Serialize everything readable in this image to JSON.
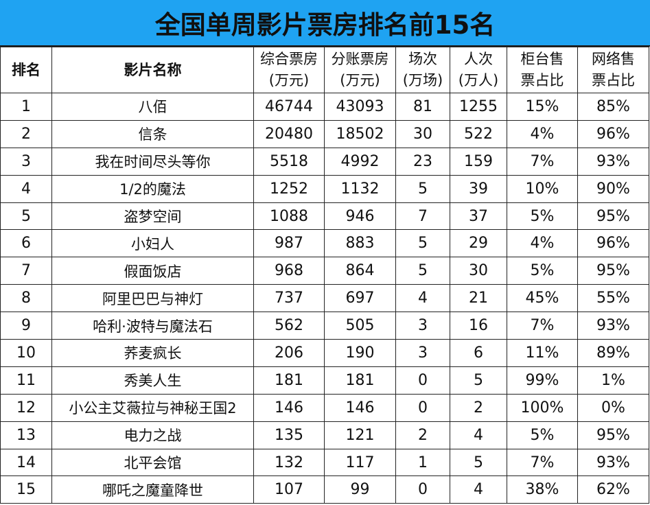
{
  "title": "全国单周影片票房排名前15名",
  "headers": [
    {
      "line1": "排名",
      "line2": ""
    },
    {
      "line1": "影片名称",
      "line2": ""
    },
    {
      "line1": "综合票房",
      "line2": "(万元)"
    },
    {
      "line1": "分账票房",
      "line2": "(万元)"
    },
    {
      "line1": "场次",
      "line2": "(万场)"
    },
    {
      "line1": "人次",
      "line2": "(万人)"
    },
    {
      "line1": "柜台售",
      "line2": "票占比"
    },
    {
      "line1": "网络售",
      "line2": "票占比"
    }
  ],
  "rows": [
    {
      "rank": "1",
      "name": "八佰",
      "total": "46744",
      "split": "43093",
      "shows": "81",
      "attendance": "1255",
      "counter": "15%",
      "online": "85%"
    },
    {
      "rank": "2",
      "name": "信条",
      "total": "20480",
      "split": "18502",
      "shows": "30",
      "attendance": "522",
      "counter": "4%",
      "online": "96%"
    },
    {
      "rank": "3",
      "name": "我在时间尽头等你",
      "total": "5518",
      "split": "4992",
      "shows": "23",
      "attendance": "159",
      "counter": "7%",
      "online": "93%"
    },
    {
      "rank": "4",
      "name": "1/2的魔法",
      "total": "1252",
      "split": "1132",
      "shows": "5",
      "attendance": "39",
      "counter": "10%",
      "online": "90%"
    },
    {
      "rank": "5",
      "name": "盗梦空间",
      "total": "1088",
      "split": "946",
      "shows": "7",
      "attendance": "37",
      "counter": "5%",
      "online": "95%"
    },
    {
      "rank": "6",
      "name": "小妇人",
      "total": "987",
      "split": "883",
      "shows": "5",
      "attendance": "29",
      "counter": "4%",
      "online": "96%"
    },
    {
      "rank": "7",
      "name": "假面饭店",
      "total": "968",
      "split": "864",
      "shows": "5",
      "attendance": "30",
      "counter": "5%",
      "online": "95%"
    },
    {
      "rank": "8",
      "name": "阿里巴巴与神灯",
      "total": "737",
      "split": "697",
      "shows": "4",
      "attendance": "21",
      "counter": "45%",
      "online": "55%"
    },
    {
      "rank": "9",
      "name": "哈利·波特与魔法石",
      "total": "562",
      "split": "505",
      "shows": "3",
      "attendance": "16",
      "counter": "7%",
      "online": "93%"
    },
    {
      "rank": "10",
      "name": "荞麦疯长",
      "total": "206",
      "split": "190",
      "shows": "3",
      "attendance": "6",
      "counter": "11%",
      "online": "89%"
    },
    {
      "rank": "11",
      "name": "秀美人生",
      "total": "181",
      "split": "181",
      "shows": "0",
      "attendance": "5",
      "counter": "99%",
      "online": "1%"
    },
    {
      "rank": "12",
      "name": "小公主艾薇拉与神秘王国2",
      "total": "146",
      "split": "146",
      "shows": "0",
      "attendance": "2",
      "counter": "100%",
      "online": "0%"
    },
    {
      "rank": "13",
      "name": "电力之战",
      "total": "135",
      "split": "121",
      "shows": "2",
      "attendance": "4",
      "counter": "5%",
      "online": "95%"
    },
    {
      "rank": "14",
      "name": "北平会馆",
      "total": "132",
      "split": "117",
      "shows": "1",
      "attendance": "5",
      "counter": "7%",
      "online": "93%"
    },
    {
      "rank": "15",
      "name": "哪吒之魔童降世",
      "total": "107",
      "split": "99",
      "shows": "0",
      "attendance": "4",
      "counter": "38%",
      "online": "62%"
    }
  ]
}
